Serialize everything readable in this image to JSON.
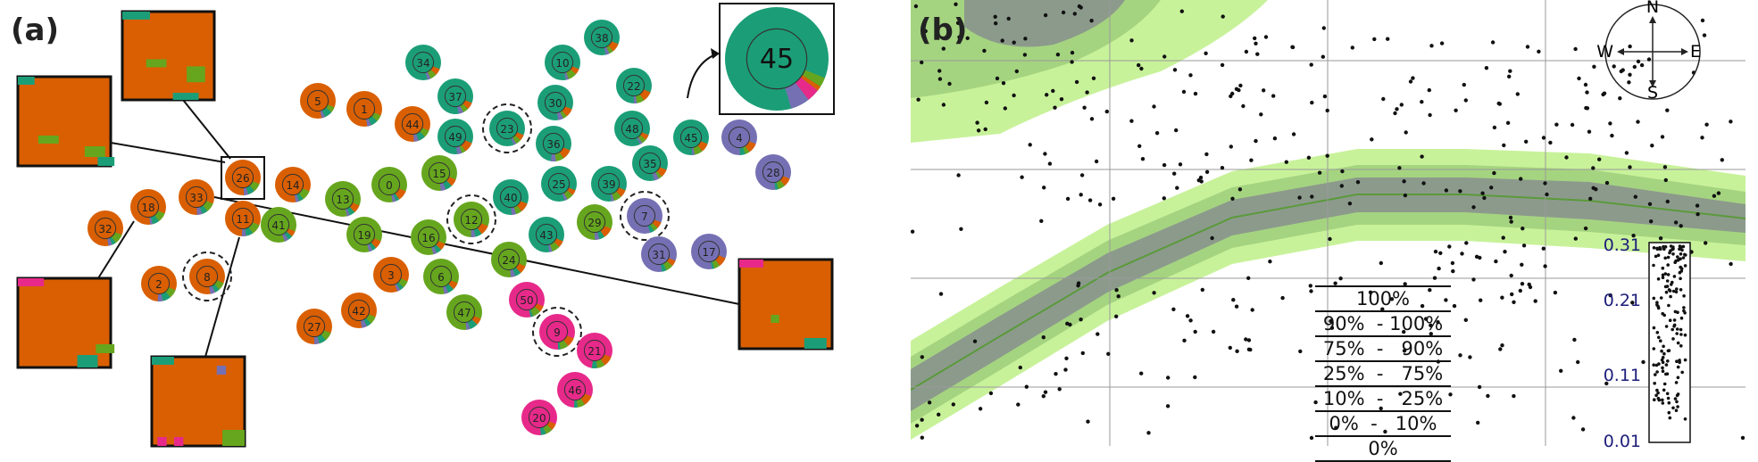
{
  "panels": {
    "a_label": "(a)",
    "b_label": "(b)"
  },
  "colors": {
    "orange": "#d95f02",
    "green": "#66a61e",
    "teal": "#1b9e77",
    "purple": "#7570b3",
    "magenta": "#e7298a",
    "light_green": "#c8f29a",
    "mid_green": "#a5d480",
    "dark_gray": "#8c9a8c"
  },
  "nodes": [
    {
      "id": "5",
      "color": "orange"
    },
    {
      "id": "1",
      "color": "orange"
    },
    {
      "id": "44",
      "color": "orange"
    },
    {
      "id": "26",
      "color": "orange"
    },
    {
      "id": "14",
      "color": "orange"
    },
    {
      "id": "18",
      "color": "orange"
    },
    {
      "id": "33",
      "color": "orange"
    },
    {
      "id": "32",
      "color": "orange"
    },
    {
      "id": "11",
      "color": "orange"
    },
    {
      "id": "2",
      "color": "orange"
    },
    {
      "id": "8",
      "color": "orange"
    },
    {
      "id": "3",
      "color": "orange"
    },
    {
      "id": "42",
      "color": "orange"
    },
    {
      "id": "27",
      "color": "orange"
    },
    {
      "id": "41",
      "color": "green"
    },
    {
      "id": "13",
      "color": "green"
    },
    {
      "id": "0",
      "color": "green"
    },
    {
      "id": "15",
      "color": "green"
    },
    {
      "id": "19",
      "color": "green"
    },
    {
      "id": "16",
      "color": "green"
    },
    {
      "id": "6",
      "color": "green"
    },
    {
      "id": "47",
      "color": "green"
    },
    {
      "id": "12",
      "color": "green"
    },
    {
      "id": "24",
      "color": "green"
    },
    {
      "id": "29",
      "color": "green"
    },
    {
      "id": "34",
      "color": "teal"
    },
    {
      "id": "37",
      "color": "teal"
    },
    {
      "id": "49",
      "color": "teal"
    },
    {
      "id": "23",
      "color": "teal"
    },
    {
      "id": "10",
      "color": "teal"
    },
    {
      "id": "38",
      "color": "teal"
    },
    {
      "id": "30",
      "color": "teal"
    },
    {
      "id": "36",
      "color": "teal"
    },
    {
      "id": "22",
      "color": "teal"
    },
    {
      "id": "48",
      "color": "teal"
    },
    {
      "id": "25",
      "color": "teal"
    },
    {
      "id": "40",
      "color": "teal"
    },
    {
      "id": "43",
      "color": "teal"
    },
    {
      "id": "39",
      "color": "teal"
    },
    {
      "id": "35",
      "color": "teal"
    },
    {
      "id": "45",
      "color": "teal"
    },
    {
      "id": "4",
      "color": "purple"
    },
    {
      "id": "28",
      "color": "purple"
    },
    {
      "id": "7",
      "color": "purple"
    },
    {
      "id": "31",
      "color": "purple"
    },
    {
      "id": "17",
      "color": "purple"
    },
    {
      "id": "50",
      "color": "magenta"
    },
    {
      "id": "9",
      "color": "magenta"
    },
    {
      "id": "21",
      "color": "magenta"
    },
    {
      "id": "46",
      "color": "magenta"
    },
    {
      "id": "20",
      "color": "magenta"
    }
  ],
  "zoom_node": {
    "id": "45"
  },
  "compass": {
    "n": "N",
    "s": "S",
    "e": "E",
    "w": "W"
  },
  "legend": [
    {
      "label": "100%",
      "color": "#ffffff"
    },
    {
      "label": "90%  - 100%",
      "color": "#c8f29a"
    },
    {
      "label": "75%  -   90%",
      "color": "#a5d480"
    },
    {
      "label": "25%  -   75%",
      "color": "#8c9a8c"
    },
    {
      "label": "10%  -   25%",
      "color": "#a5d480"
    },
    {
      "label": "0%  -   10%",
      "color": "#c8f29a"
    },
    {
      "label": "0%",
      "color": "#ffffff"
    }
  ],
  "yaxis_labels": [
    "0.31",
    "0.21",
    "0.11",
    "0.01"
  ]
}
